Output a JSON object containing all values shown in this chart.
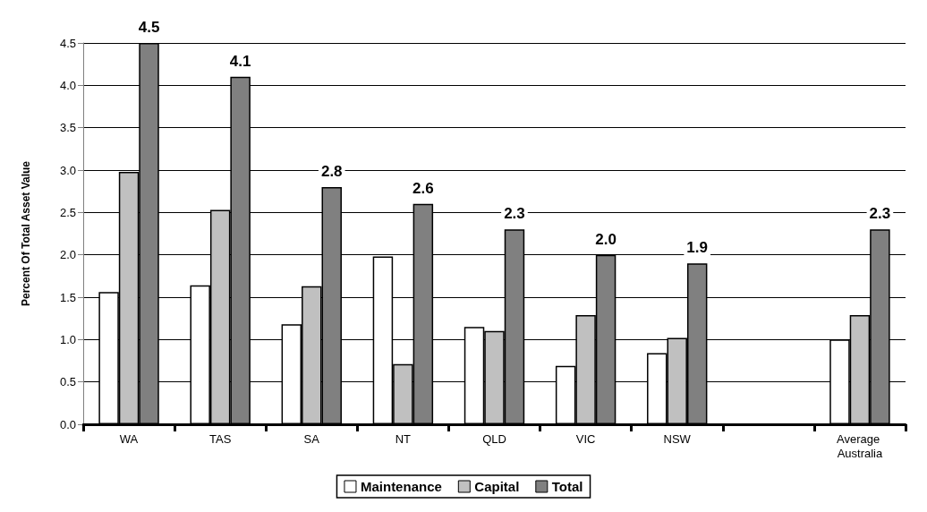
{
  "chart_data": {
    "type": "bar",
    "ylabel": "Percent Of Total Asset Value",
    "categories": [
      "WA",
      "TAS",
      "SA",
      "NT",
      "QLD",
      "VIC",
      "NSW",
      null,
      "Average Australia"
    ],
    "series": [
      {
        "name": "Maintenance",
        "color": "#ffffff",
        "values": [
          1.56,
          1.64,
          1.18,
          1.98,
          1.15,
          0.69,
          0.84,
          null,
          1.0
        ]
      },
      {
        "name": "Capital",
        "color": "#c0c0c0",
        "values": [
          2.98,
          2.53,
          1.63,
          0.71,
          1.1,
          1.29,
          1.02,
          null,
          1.29
        ]
      },
      {
        "name": "Total",
        "color": "#808080",
        "values": [
          4.5,
          4.1,
          2.8,
          2.6,
          2.3,
          2.0,
          1.9,
          null,
          2.3
        ],
        "value_labels": [
          "4.5",
          "4.1",
          "2.8",
          "2.6",
          "2.3",
          "2.0",
          "1.9",
          null,
          "2.3"
        ]
      }
    ],
    "ylim": [
      0,
      4.5
    ],
    "yticks": [
      {
        "value": 0,
        "label": "0.0"
      },
      0.5,
      {
        "value": 1,
        "label": "1.0"
      },
      1.5,
      {
        "value": 2,
        "label": "2.0"
      },
      2.5,
      {
        "value": 3,
        "label": "3.0"
      },
      3.5,
      {
        "value": 4,
        "label": "4.0"
      },
      4.5
    ],
    "grid": "y",
    "legend": "bottom"
  }
}
